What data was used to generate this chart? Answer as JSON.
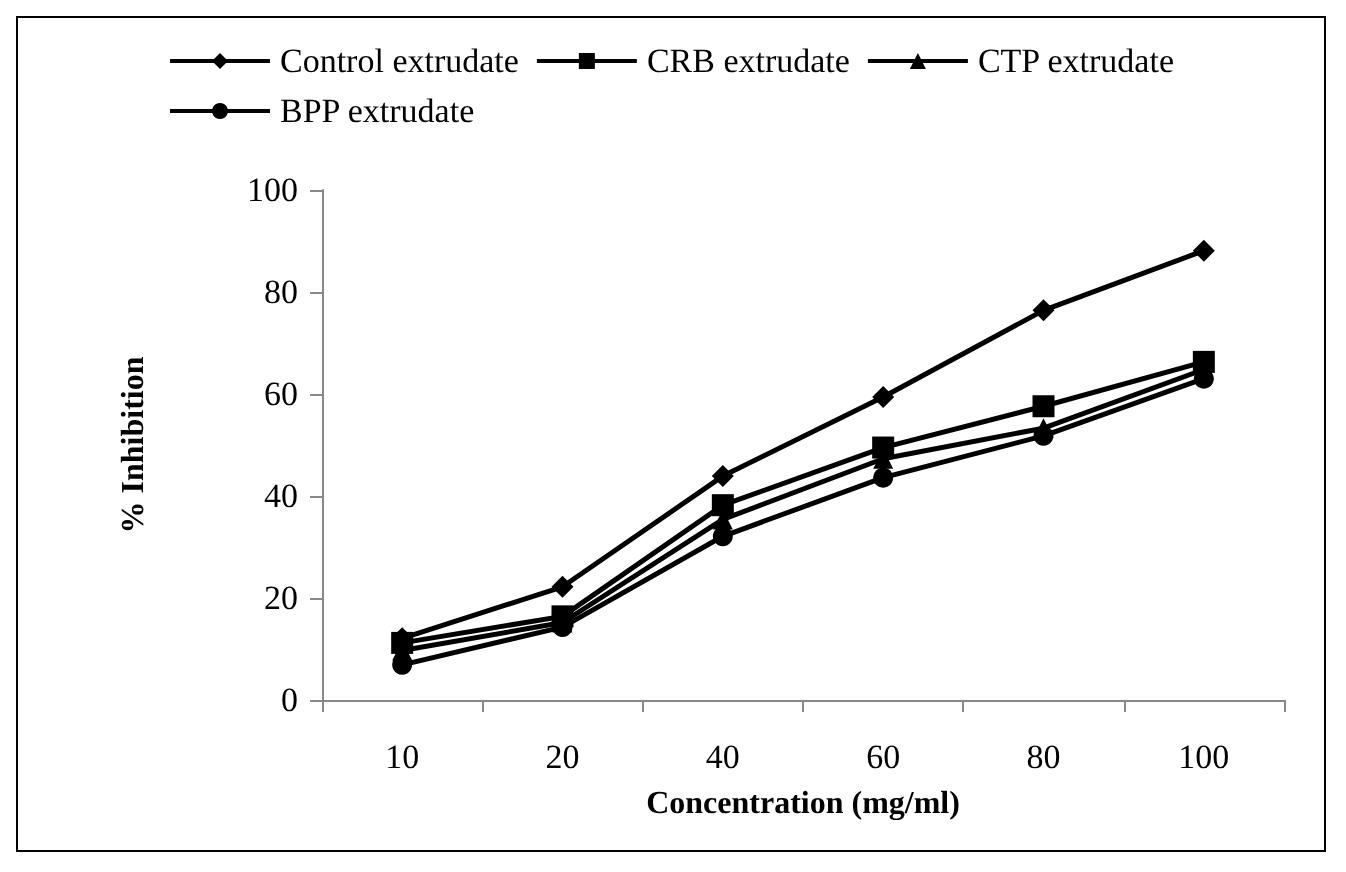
{
  "chart_data": {
    "type": "line",
    "xlabel": "Concentration (mg/ml)",
    "ylabel": "% Inhibition",
    "categories": [
      "10",
      "20",
      "40",
      "60",
      "80",
      "100"
    ],
    "series": [
      {
        "name": "Control extrudate",
        "color": "#000000",
        "marker": "diamond",
        "values": [
          12.1,
          22.2,
          43.9,
          59.4,
          76.4,
          88.1
        ]
      },
      {
        "name": "CRB extrudate",
        "color": "#000000",
        "marker": "square",
        "values": [
          11.2,
          16.4,
          38.2,
          49.5,
          57.6,
          66.3
        ]
      },
      {
        "name": "CTP extrudate",
        "color": "#000000",
        "marker": "triangle",
        "values": [
          9.7,
          15.2,
          35.4,
          47.3,
          53.3,
          64.8
        ]
      },
      {
        "name": "BPP extrudate",
        "color": "#000000",
        "marker": "circle",
        "values": [
          6.9,
          14.3,
          32.1,
          43.6,
          51.8,
          63.0
        ]
      }
    ],
    "ylim": [
      0,
      100
    ],
    "yticks": [
      0,
      20,
      40,
      60,
      80,
      100
    ],
    "grid": false,
    "legend": "top",
    "line_style": "solid"
  }
}
